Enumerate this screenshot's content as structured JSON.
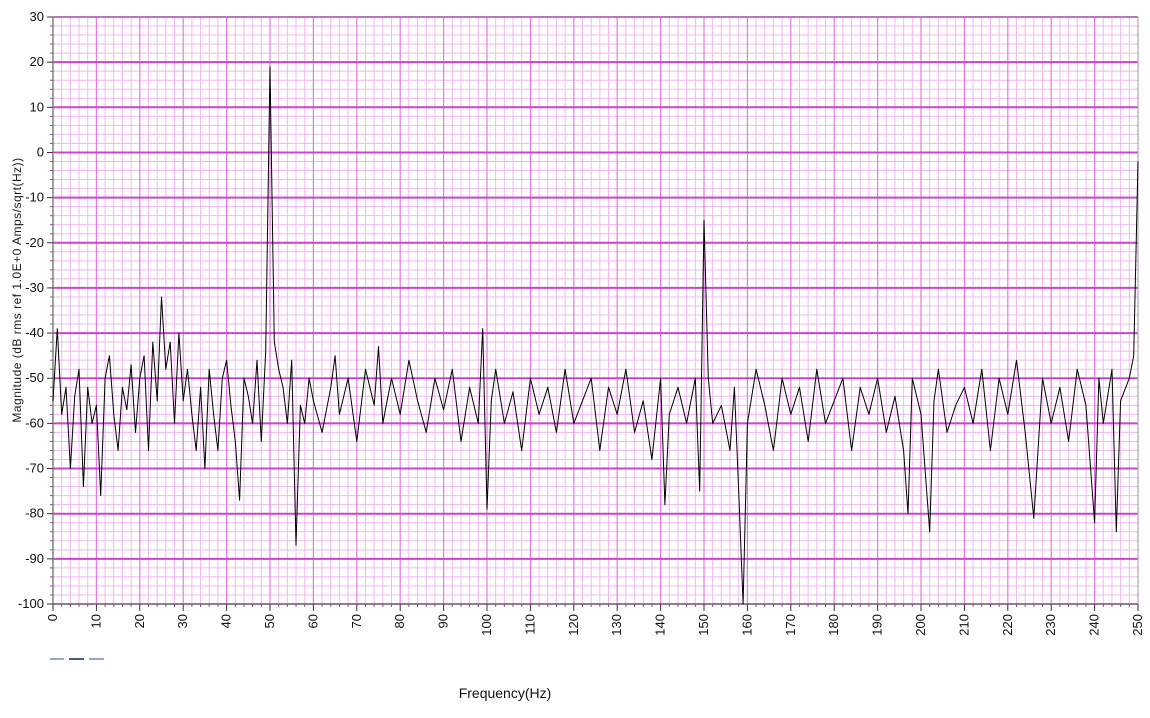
{
  "chart_data": {
    "type": "line",
    "title": "",
    "xlabel": "Frequency(Hz)",
    "ylabel": "Magnitude (dB rms ref 1.0E+0 Amps/sqrt(Hz))",
    "xlim": [
      0,
      250
    ],
    "ylim": [
      -100,
      30
    ],
    "x_ticks": [
      0,
      10,
      20,
      30,
      40,
      50,
      60,
      70,
      80,
      90,
      100,
      110,
      120,
      130,
      140,
      150,
      160,
      170,
      180,
      190,
      200,
      210,
      220,
      230,
      240,
      250
    ],
    "y_ticks": [
      30,
      20,
      10,
      0,
      -10,
      -20,
      -30,
      -40,
      -50,
      -60,
      -70,
      -80,
      -90,
      -100
    ],
    "grid": "major and minor",
    "series_color": "#000000",
    "series": [
      {
        "x": [
          0,
          1,
          2,
          3,
          4,
          5,
          6,
          7,
          8,
          9,
          10,
          11,
          12,
          13,
          14,
          15,
          16,
          17,
          18,
          19,
          20,
          21,
          22,
          23,
          24,
          25,
          26,
          27,
          28,
          29,
          30,
          31,
          32,
          33,
          34,
          35,
          36,
          37,
          38,
          39,
          40,
          41,
          42,
          43,
          44,
          45,
          46,
          47,
          48,
          49,
          50,
          51,
          52,
          53,
          54,
          55,
          56,
          57,
          58,
          59,
          60,
          62,
          64,
          65,
          66,
          68,
          70,
          72,
          74,
          75,
          76,
          78,
          80,
          82,
          84,
          86,
          88,
          90,
          92,
          94,
          96,
          98,
          99,
          100,
          101,
          102,
          104,
          106,
          108,
          110,
          112,
          114,
          116,
          118,
          120,
          122,
          124,
          126,
          128,
          130,
          132,
          134,
          136,
          138,
          140,
          141,
          142,
          144,
          146,
          148,
          149,
          150,
          151,
          152,
          154,
          156,
          157,
          158,
          159,
          160,
          162,
          164,
          166,
          168,
          170,
          172,
          174,
          176,
          178,
          180,
          182,
          184,
          186,
          188,
          190,
          192,
          194,
          196,
          197,
          198,
          200,
          202,
          203,
          204,
          206,
          208,
          210,
          212,
          214,
          216,
          218,
          220,
          222,
          224,
          226,
          228,
          230,
          232,
          234,
          236,
          238,
          240,
          241,
          242,
          244,
          245,
          246,
          248,
          249,
          250
        ],
        "y": [
          -55,
          -39,
          -58,
          -52,
          -70,
          -54,
          -48,
          -74,
          -52,
          -60,
          -56,
          -76,
          -50,
          -45,
          -58,
          -66,
          -52,
          -57,
          -47,
          -62,
          -50,
          -45,
          -66,
          -42,
          -55,
          -32,
          -48,
          -42,
          -60,
          -40,
          -55,
          -48,
          -58,
          -66,
          -52,
          -70,
          -48,
          -58,
          -66,
          -50,
          -46,
          -56,
          -64,
          -77,
          -50,
          -54,
          -60,
          -46,
          -64,
          -44,
          19,
          -42,
          -48,
          -52,
          -60,
          -46,
          -87,
          -56,
          -60,
          -50,
          -55,
          -62,
          -52,
          -45,
          -58,
          -50,
          -64,
          -48,
          -56,
          -43,
          -60,
          -50,
          -58,
          -46,
          -55,
          -62,
          -50,
          -57,
          -48,
          -64,
          -52,
          -60,
          -39,
          -79,
          -55,
          -48,
          -60,
          -53,
          -66,
          -50,
          -58,
          -52,
          -62,
          -48,
          -60,
          -55,
          -50,
          -66,
          -52,
          -58,
          -48,
          -62,
          -55,
          -68,
          -50,
          -78,
          -58,
          -52,
          -60,
          -50,
          -75,
          -15,
          -50,
          -60,
          -56,
          -66,
          -52,
          -75,
          -100,
          -60,
          -48,
          -56,
          -66,
          -50,
          -58,
          -52,
          -64,
          -48,
          -60,
          -55,
          -50,
          -66,
          -52,
          -58,
          -50,
          -62,
          -54,
          -66,
          -80,
          -50,
          -58,
          -84,
          -55,
          -48,
          -62,
          -56,
          -52,
          -60,
          -48,
          -66,
          -50,
          -58,
          -46,
          -62,
          -81,
          -50,
          -60,
          -52,
          -64,
          -48,
          -56,
          -82,
          -50,
          -60,
          -48,
          -84,
          -55,
          -50,
          -45,
          -2
        ]
      }
    ]
  }
}
